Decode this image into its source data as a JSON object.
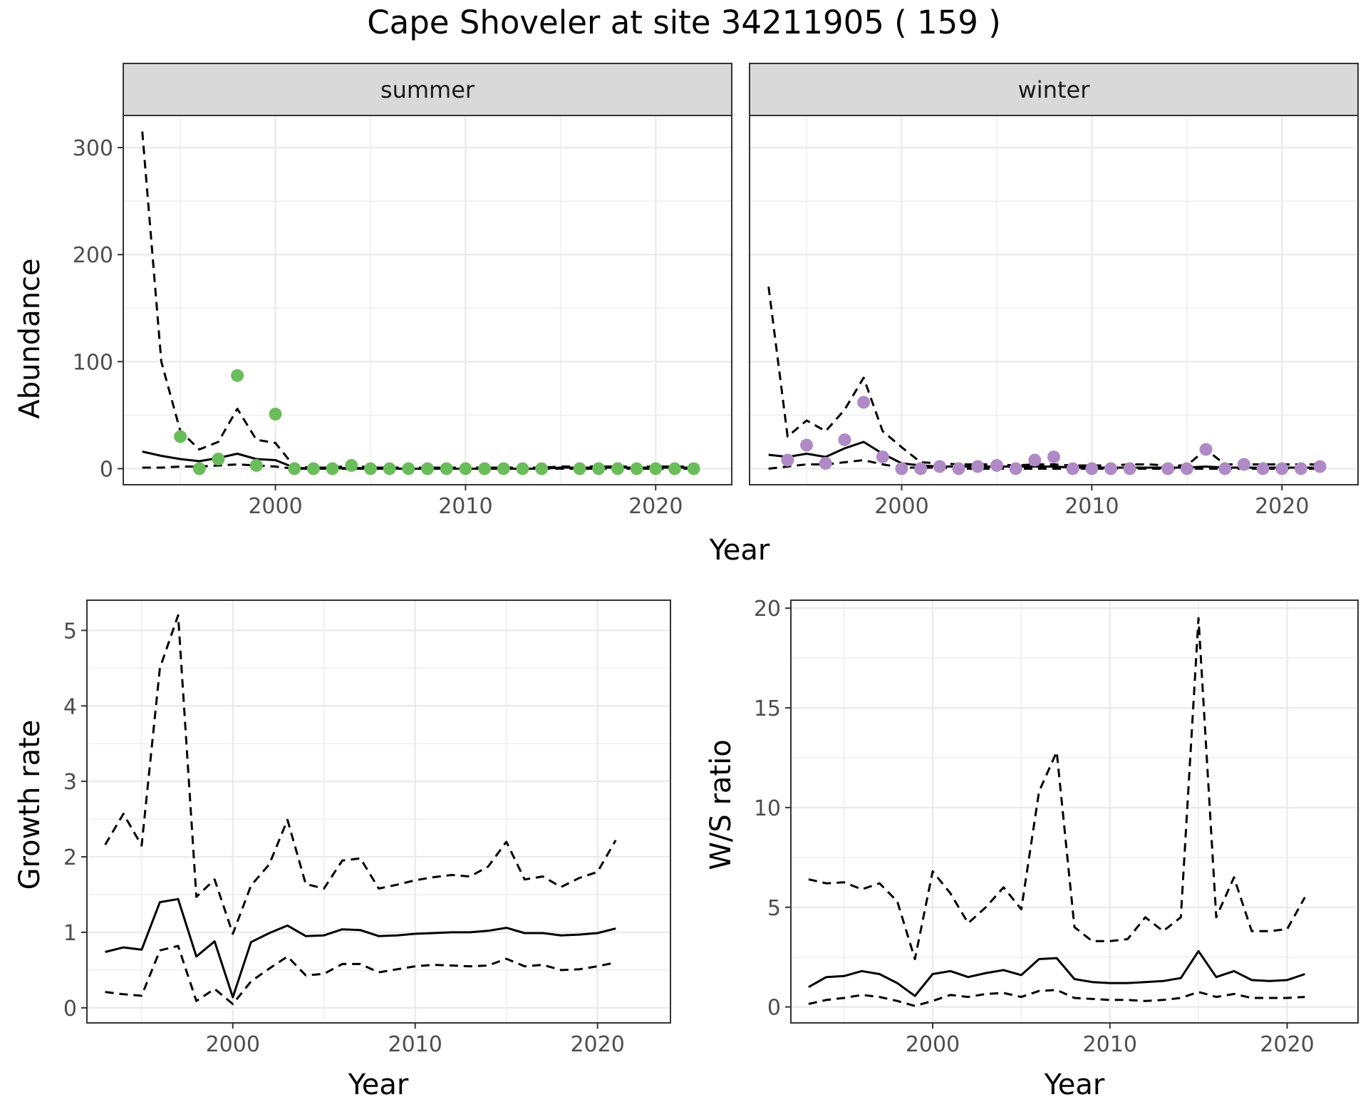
{
  "title": "Cape Shoveler at site 34211905 ( 159 )",
  "colors": {
    "summer_points": "#6bbd5b",
    "winter_points": "#b08ac6",
    "strip_fill": "#d9d9d9",
    "grid": "#ebebeb",
    "line": "#000000"
  },
  "chart_data": [
    {
      "type": "line",
      "facet": "summer",
      "xlabel": "Year",
      "ylabel": "Abundance",
      "xlim": [
        1992,
        2024
      ],
      "ylim": [
        -15,
        330
      ],
      "xticks": [
        2000,
        2010,
        2020
      ],
      "yticks": [
        0,
        100,
        200,
        300
      ],
      "grid": true,
      "series": [
        {
          "role": "estimate",
          "style": "solid",
          "x": [
            1993,
            1994,
            1995,
            1996,
            1997,
            1998,
            1999,
            2000,
            2001,
            2002,
            2003,
            2004,
            2005,
            2006,
            2007,
            2008,
            2009,
            2010,
            2011,
            2012,
            2013,
            2014,
            2015,
            2016,
            2017,
            2018,
            2019,
            2020,
            2021,
            2022
          ],
          "values": [
            16,
            12,
            9,
            7,
            10,
            14,
            9,
            8,
            1,
            0,
            0,
            1,
            0,
            0,
            0,
            0,
            0,
            0,
            0,
            0,
            0,
            0,
            1,
            1,
            1,
            1,
            1,
            1,
            1,
            1
          ]
        },
        {
          "role": "upper",
          "style": "dashed",
          "x": [
            1993,
            1994,
            1995,
            1996,
            1997,
            1998,
            1999,
            2000,
            2001,
            2002,
            2003,
            2004,
            2005,
            2006,
            2007,
            2008,
            2009,
            2010,
            2011,
            2012,
            2013,
            2014,
            2015,
            2016,
            2017,
            2018,
            2019,
            2020,
            2021,
            2022
          ],
          "values": [
            315,
            100,
            35,
            18,
            25,
            56,
            27,
            24,
            2,
            1,
            1,
            3,
            1,
            1,
            1,
            1,
            1,
            1,
            1,
            1,
            1,
            1,
            2,
            2,
            2,
            2,
            2,
            2,
            2,
            2
          ]
        },
        {
          "role": "lower",
          "style": "dashed",
          "x": [
            1993,
            1994,
            1995,
            1996,
            1997,
            1998,
            1999,
            2000,
            2001,
            2002,
            2003,
            2004,
            2005,
            2006,
            2007,
            2008,
            2009,
            2010,
            2011,
            2012,
            2013,
            2014,
            2015,
            2016,
            2017,
            2018,
            2019,
            2020,
            2021,
            2022
          ],
          "values": [
            1,
            1,
            2,
            2,
            3,
            4,
            3,
            2,
            0,
            0,
            0,
            0,
            0,
            0,
            0,
            0,
            0,
            0,
            0,
            0,
            0,
            0,
            0,
            0,
            0,
            0,
            0,
            0,
            0,
            0
          ]
        },
        {
          "role": "counts",
          "style": "points",
          "x": [
            1995,
            1996,
            1997,
            1998,
            1999,
            2000,
            2001,
            2002,
            2003,
            2004,
            2005,
            2006,
            2007,
            2008,
            2009,
            2010,
            2011,
            2012,
            2013,
            2014,
            2016,
            2017,
            2018,
            2019,
            2020,
            2021,
            2022
          ],
          "values": [
            30,
            0,
            9,
            87,
            3,
            51,
            0,
            0,
            0,
            3,
            0,
            0,
            0,
            0,
            0,
            0,
            0,
            0,
            0,
            0,
            0,
            0,
            0,
            0,
            0,
            0,
            0
          ]
        }
      ]
    },
    {
      "type": "line",
      "facet": "winter",
      "xlabel": "Year",
      "ylabel": "Abundance",
      "xlim": [
        1992,
        2024
      ],
      "ylim": [
        -15,
        330
      ],
      "xticks": [
        2000,
        2010,
        2020
      ],
      "yticks": [
        0,
        100,
        200,
        300
      ],
      "grid": true,
      "series": [
        {
          "role": "estimate",
          "style": "solid",
          "x": [
            1993,
            1994,
            1995,
            1996,
            1997,
            1998,
            1999,
            2000,
            2001,
            2002,
            2003,
            2004,
            2005,
            2006,
            2007,
            2008,
            2009,
            2010,
            2011,
            2012,
            2013,
            2014,
            2015,
            2016,
            2017,
            2018,
            2019,
            2020,
            2021,
            2022
          ],
          "values": [
            13,
            11,
            14,
            11,
            19,
            25,
            14,
            5,
            3,
            2,
            2,
            2,
            2,
            2,
            2,
            2,
            1,
            1,
            1,
            1,
            1,
            1,
            1,
            2,
            1,
            1,
            1,
            1,
            1,
            1
          ]
        },
        {
          "role": "upper",
          "style": "dashed",
          "x": [
            1993,
            1994,
            1995,
            1996,
            1997,
            1998,
            1999,
            2000,
            2001,
            2002,
            2003,
            2004,
            2005,
            2006,
            2007,
            2008,
            2009,
            2010,
            2011,
            2012,
            2013,
            2014,
            2015,
            2016,
            2017,
            2018,
            2019,
            2020,
            2021,
            2022
          ],
          "values": [
            170,
            30,
            45,
            35,
            55,
            85,
            35,
            20,
            6,
            5,
            4,
            4,
            4,
            3,
            4,
            4,
            3,
            3,
            3,
            4,
            4,
            3,
            3,
            18,
            4,
            4,
            4,
            4,
            4,
            4
          ]
        },
        {
          "role": "lower",
          "style": "dashed",
          "x": [
            1993,
            1994,
            1995,
            1996,
            1997,
            1998,
            1999,
            2000,
            2001,
            2002,
            2003,
            2004,
            2005,
            2006,
            2007,
            2008,
            2009,
            2010,
            2011,
            2012,
            2013,
            2014,
            2015,
            2016,
            2017,
            2018,
            2019,
            2020,
            2021,
            2022
          ],
          "values": [
            0,
            2,
            4,
            4,
            6,
            8,
            4,
            1,
            1,
            1,
            0,
            0,
            0,
            0,
            0,
            0,
            0,
            0,
            0,
            0,
            0,
            0,
            0,
            0,
            0,
            0,
            0,
            0,
            0,
            0
          ]
        },
        {
          "role": "counts",
          "style": "points",
          "x": [
            1994,
            1995,
            1996,
            1997,
            1998,
            1999,
            2000,
            2001,
            2002,
            2003,
            2004,
            2005,
            2006,
            2007,
            2008,
            2009,
            2010,
            2011,
            2012,
            2014,
            2015,
            2016,
            2017,
            2018,
            2019,
            2020,
            2021,
            2022
          ],
          "values": [
            8,
            22,
            5,
            27,
            62,
            11,
            0,
            0,
            2,
            0,
            2,
            3,
            0,
            8,
            11,
            0,
            0,
            0,
            0,
            0,
            0,
            18,
            0,
            4,
            0,
            0,
            0,
            2
          ]
        }
      ]
    },
    {
      "type": "line",
      "xlabel": "Year",
      "ylabel": "Growth rate",
      "xlim": [
        1992,
        2024
      ],
      "ylim": [
        -0.2,
        5.4
      ],
      "xticks": [
        2000,
        2010,
        2020
      ],
      "yticks": [
        0,
        1,
        2,
        3,
        4,
        5
      ],
      "grid": true,
      "series": [
        {
          "role": "estimate",
          "style": "solid",
          "x": [
            1993,
            1994,
            1995,
            1996,
            1997,
            1998,
            1999,
            2000,
            2001,
            2002,
            2003,
            2004,
            2005,
            2006,
            2007,
            2008,
            2009,
            2010,
            2011,
            2012,
            2013,
            2014,
            2015,
            2016,
            2017,
            2018,
            2019,
            2020,
            2021
          ],
          "values": [
            0.74,
            0.8,
            0.77,
            1.4,
            1.44,
            0.68,
            0.88,
            0.14,
            0.87,
            0.99,
            1.09,
            0.95,
            0.96,
            1.04,
            1.03,
            0.95,
            0.96,
            0.98,
            0.99,
            1.0,
            1.0,
            1.02,
            1.06,
            0.99,
            0.99,
            0.96,
            0.97,
            0.99,
            1.05
          ]
        },
        {
          "role": "upper",
          "style": "dashed",
          "x": [
            1993,
            1994,
            1995,
            1996,
            1997,
            1998,
            1999,
            2000,
            2001,
            2002,
            2003,
            2004,
            2005,
            2006,
            2007,
            2008,
            2009,
            2010,
            2011,
            2012,
            2013,
            2014,
            2015,
            2016,
            2017,
            2018,
            2019,
            2020,
            2021
          ],
          "values": [
            2.16,
            2.57,
            2.15,
            4.5,
            5.2,
            1.47,
            1.7,
            0.98,
            1.62,
            1.9,
            2.49,
            1.64,
            1.58,
            1.95,
            1.98,
            1.58,
            1.63,
            1.69,
            1.73,
            1.76,
            1.74,
            1.87,
            2.2,
            1.7,
            1.74,
            1.6,
            1.72,
            1.8,
            2.22
          ]
        },
        {
          "role": "lower",
          "style": "dashed",
          "x": [
            1993,
            1994,
            1995,
            1996,
            1997,
            1998,
            1999,
            2000,
            2001,
            2002,
            2003,
            2004,
            2005,
            2006,
            2007,
            2008,
            2009,
            2010,
            2011,
            2012,
            2013,
            2014,
            2015,
            2016,
            2017,
            2018,
            2019,
            2020,
            2021
          ],
          "values": [
            0.21,
            0.18,
            0.16,
            0.76,
            0.82,
            0.09,
            0.25,
            0.05,
            0.35,
            0.52,
            0.68,
            0.43,
            0.45,
            0.58,
            0.58,
            0.47,
            0.51,
            0.55,
            0.57,
            0.56,
            0.55,
            0.56,
            0.65,
            0.55,
            0.57,
            0.5,
            0.51,
            0.55,
            0.6
          ]
        }
      ]
    },
    {
      "type": "line",
      "xlabel": "Year",
      "ylabel": "W/S ratio",
      "xlim": [
        1992,
        2024
      ],
      "ylim": [
        -0.8,
        20.4
      ],
      "xticks": [
        2000,
        2010,
        2020
      ],
      "yticks": [
        0,
        5,
        10,
        15,
        20
      ],
      "grid": true,
      "series": [
        {
          "role": "estimate",
          "style": "solid",
          "x": [
            1993,
            1994,
            1995,
            1996,
            1997,
            1998,
            1999,
            2000,
            2001,
            2002,
            2003,
            2004,
            2005,
            2006,
            2007,
            2008,
            2009,
            2010,
            2011,
            2012,
            2013,
            2014,
            2015,
            2016,
            2017,
            2018,
            2019,
            2020,
            2021
          ],
          "values": [
            1.0,
            1.5,
            1.55,
            1.8,
            1.65,
            1.2,
            0.55,
            1.65,
            1.8,
            1.5,
            1.7,
            1.85,
            1.6,
            2.4,
            2.45,
            1.4,
            1.25,
            1.2,
            1.2,
            1.25,
            1.3,
            1.45,
            2.8,
            1.5,
            1.8,
            1.35,
            1.3,
            1.35,
            1.65
          ]
        },
        {
          "role": "upper",
          "style": "dashed",
          "x": [
            1993,
            1994,
            1995,
            1996,
            1997,
            1998,
            1999,
            2000,
            2001,
            2002,
            2003,
            2004,
            2005,
            2006,
            2007,
            2008,
            2009,
            2010,
            2011,
            2012,
            2013,
            2014,
            2015,
            2016,
            2017,
            2018,
            2019,
            2020,
            2021
          ],
          "values": [
            6.4,
            6.2,
            6.25,
            5.9,
            6.2,
            5.3,
            2.4,
            6.8,
            5.7,
            4.2,
            5.0,
            6.0,
            4.9,
            10.8,
            12.8,
            4.0,
            3.3,
            3.3,
            3.4,
            4.5,
            3.8,
            4.5,
            19.5,
            4.5,
            6.5,
            3.8,
            3.8,
            3.9,
            5.5
          ]
        },
        {
          "role": "lower",
          "style": "dashed",
          "x": [
            1993,
            1994,
            1995,
            1996,
            1997,
            1998,
            1999,
            2000,
            2001,
            2002,
            2003,
            2004,
            2005,
            2006,
            2007,
            2008,
            2009,
            2010,
            2011,
            2012,
            2013,
            2014,
            2015,
            2016,
            2017,
            2018,
            2019,
            2020,
            2021
          ],
          "values": [
            0.15,
            0.35,
            0.45,
            0.6,
            0.5,
            0.3,
            0.05,
            0.3,
            0.6,
            0.5,
            0.65,
            0.7,
            0.5,
            0.8,
            0.85,
            0.45,
            0.4,
            0.35,
            0.35,
            0.3,
            0.35,
            0.45,
            0.75,
            0.5,
            0.65,
            0.45,
            0.45,
            0.45,
            0.5
          ]
        }
      ]
    }
  ]
}
